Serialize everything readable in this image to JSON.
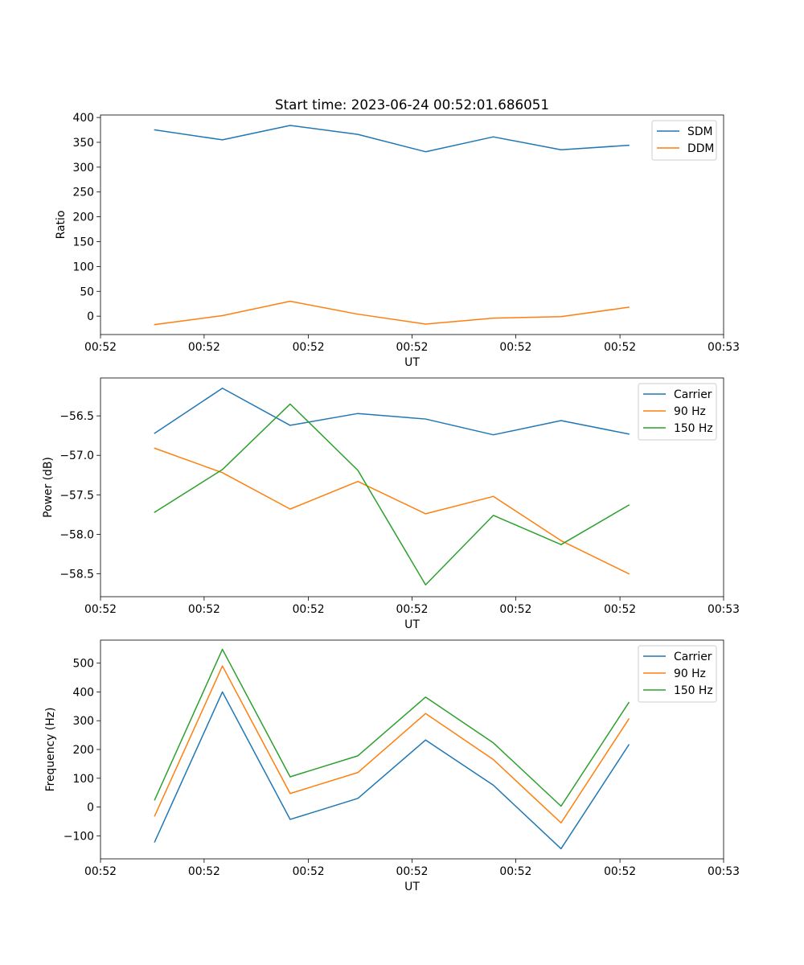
{
  "figure": {
    "title": "Start time: 2023-06-24 00:52:01.686051"
  },
  "colors": {
    "blue": "#1f77b4",
    "orange": "#ff7f0e",
    "green": "#2ca02c"
  },
  "chart_data": [
    {
      "type": "line",
      "title": "Start time: 2023-06-24 00:52:01.686051",
      "xlabel": "UT",
      "ylabel": "Ratio",
      "x": [
        1,
        2,
        3,
        4,
        5,
        6,
        7,
        8
      ],
      "xlim": [
        0.2,
        9.4
      ],
      "ylim": [
        -37,
        405
      ],
      "xticks": [
        {
          "pos": 0.2,
          "label": "00:52"
        },
        {
          "pos": 1.73,
          "label": "00:52"
        },
        {
          "pos": 3.27,
          "label": "00:52"
        },
        {
          "pos": 4.8,
          "label": "00:52"
        },
        {
          "pos": 6.33,
          "label": "00:52"
        },
        {
          "pos": 7.87,
          "label": "00:52"
        },
        {
          "pos": 9.4,
          "label": "00:53"
        }
      ],
      "yticks": [
        0,
        50,
        100,
        150,
        200,
        250,
        300,
        350,
        400
      ],
      "legend": "top-right",
      "series": [
        {
          "name": "SDM",
          "color": "#1f77b4",
          "values": [
            375,
            355,
            384,
            366,
            331,
            361,
            335,
            344
          ]
        },
        {
          "name": "DDM",
          "color": "#ff7f0e",
          "values": [
            -17,
            1,
            30,
            4,
            -16,
            -4,
            -1,
            18
          ]
        }
      ]
    },
    {
      "type": "line",
      "xlabel": "UT",
      "ylabel": "Power (dB)",
      "x": [
        1,
        2,
        3,
        4,
        5,
        6,
        7,
        8
      ],
      "xlim": [
        0.2,
        9.4
      ],
      "ylim": [
        -58.79,
        -56.02
      ],
      "xticks": [
        {
          "pos": 0.2,
          "label": "00:52"
        },
        {
          "pos": 1.73,
          "label": "00:52"
        },
        {
          "pos": 3.27,
          "label": "00:52"
        },
        {
          "pos": 4.8,
          "label": "00:52"
        },
        {
          "pos": 6.33,
          "label": "00:52"
        },
        {
          "pos": 7.87,
          "label": "00:52"
        },
        {
          "pos": 9.4,
          "label": "00:53"
        }
      ],
      "yticks": [
        -56.5,
        -57.0,
        -57.5,
        -58.0,
        -58.5
      ],
      "ytick_labels": [
        "−56.5",
        "−57.0",
        "−57.5",
        "−58.0",
        "−58.5"
      ],
      "legend": "top-right",
      "series": [
        {
          "name": "Carrier",
          "color": "#1f77b4",
          "values": [
            -56.72,
            -56.15,
            -56.62,
            -56.47,
            -56.54,
            -56.74,
            -56.56,
            -56.73
          ]
        },
        {
          "name": "90 Hz",
          "color": "#ff7f0e",
          "values": [
            -56.91,
            -57.22,
            -57.68,
            -57.33,
            -57.74,
            -57.52,
            -58.08,
            -58.5
          ]
        },
        {
          "name": "150 Hz",
          "color": "#2ca02c",
          "values": [
            -57.72,
            -57.18,
            -56.35,
            -57.19,
            -58.64,
            -57.76,
            -58.13,
            -57.63
          ]
        }
      ]
    },
    {
      "type": "line",
      "xlabel": "UT",
      "ylabel": "Frequency (Hz)",
      "x": [
        1,
        2,
        3,
        4,
        5,
        6,
        7,
        8
      ],
      "xlim": [
        0.2,
        9.4
      ],
      "ylim": [
        -180,
        580
      ],
      "xticks": [
        {
          "pos": 0.2,
          "label": "00:52"
        },
        {
          "pos": 1.73,
          "label": "00:52"
        },
        {
          "pos": 3.27,
          "label": "00:52"
        },
        {
          "pos": 4.8,
          "label": "00:52"
        },
        {
          "pos": 6.33,
          "label": "00:52"
        },
        {
          "pos": 7.87,
          "label": "00:52"
        },
        {
          "pos": 9.4,
          "label": "00:53"
        }
      ],
      "yticks": [
        -100,
        0,
        100,
        200,
        300,
        400,
        500
      ],
      "ytick_labels": [
        "−100",
        "0",
        "100",
        "200",
        "300",
        "400",
        "500"
      ],
      "legend": "top-right",
      "series": [
        {
          "name": "Carrier",
          "color": "#1f77b4",
          "values": [
            -121,
            400,
            -43,
            30,
            233,
            76,
            -145,
            216
          ]
        },
        {
          "name": "90 Hz",
          "color": "#ff7f0e",
          "values": [
            -31,
            490,
            47,
            120,
            325,
            165,
            -55,
            306
          ]
        },
        {
          "name": "150 Hz",
          "color": "#2ca02c",
          "values": [
            25,
            548,
            105,
            178,
            382,
            223,
            3,
            363
          ]
        }
      ]
    }
  ]
}
